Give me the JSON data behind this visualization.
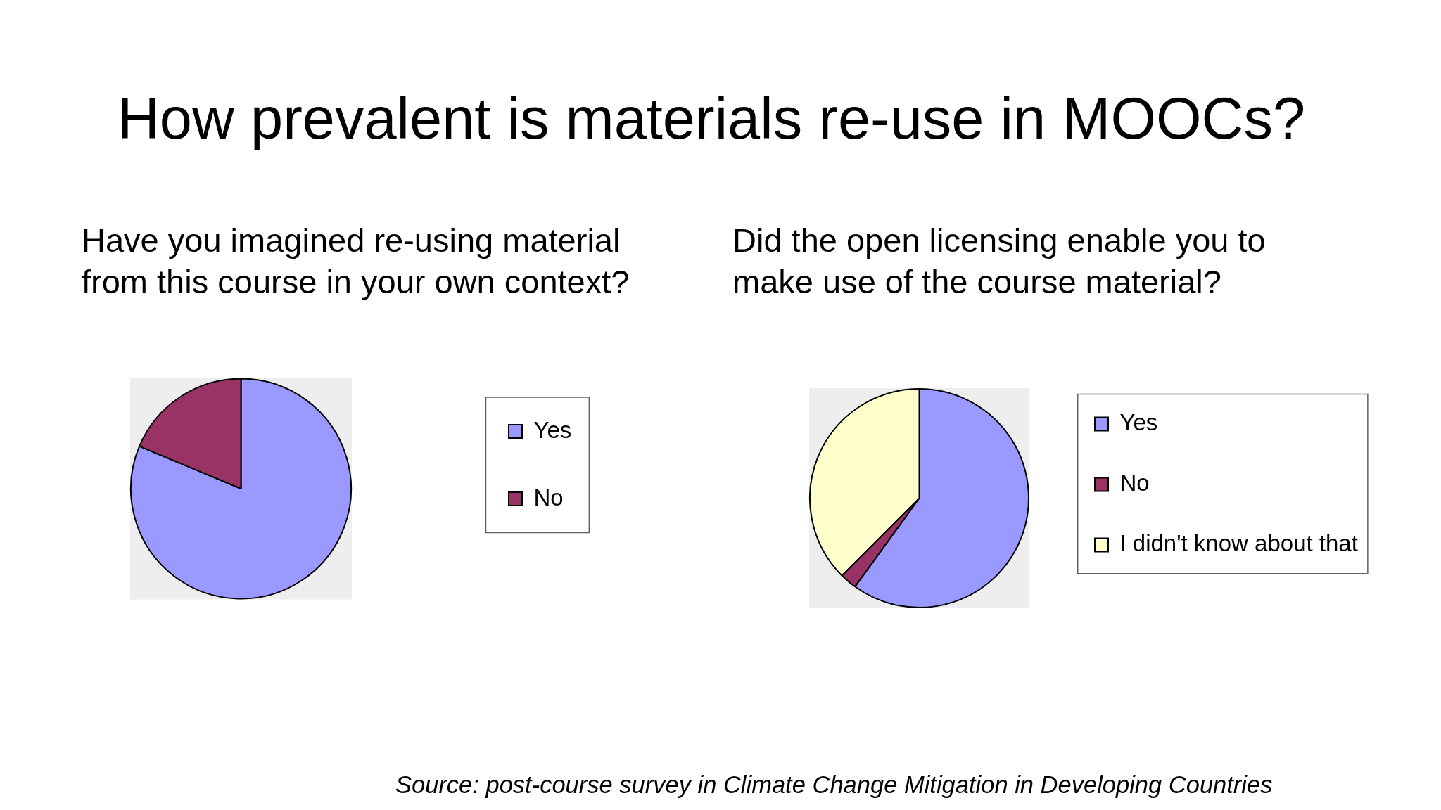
{
  "chart_data": [
    {
      "type": "other",
      "title": "How prevalent is materials re-use in MOOCs?",
      "annotations": [
        "Source: post-course survey in Climate Change Mitigation in Developing Countries"
      ]
    },
    {
      "type": "pie",
      "title": "Have you imagined re-using material from this course in your own context?",
      "categories": [
        "Yes",
        "No"
      ],
      "values": [
        81.3,
        18.7
      ],
      "colors": [
        "#9999ff",
        "#993366"
      ],
      "legend": "right"
    },
    {
      "type": "pie",
      "title": "Did the open licensing enable you to make use of the course material?",
      "categories": [
        "Yes",
        "No",
        "I didn't know about that"
      ],
      "values": [
        60,
        2.5,
        37.5
      ],
      "colors": [
        "#9999ff",
        "#993366",
        "#ffffcc"
      ],
      "legend": "right"
    }
  ]
}
